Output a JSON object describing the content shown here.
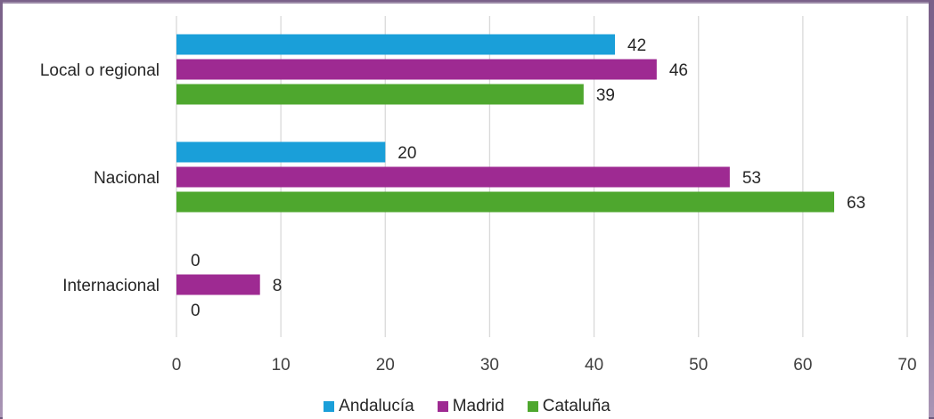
{
  "chart_data": {
    "type": "bar",
    "orientation": "horizontal",
    "categories": [
      "Local o regional",
      "Nacional",
      "Internacional"
    ],
    "series": [
      {
        "name": "Andalucía",
        "color": "#1a9fd9",
        "values": [
          42,
          20,
          0
        ]
      },
      {
        "name": "Madrid",
        "color": "#9e2a92",
        "values": [
          46,
          53,
          8
        ]
      },
      {
        "name": "Cataluña",
        "color": "#4ea72e",
        "values": [
          39,
          63,
          0
        ]
      }
    ],
    "xlim": [
      0,
      70
    ],
    "x_ticks": [
      0,
      10,
      20,
      30,
      40,
      50,
      60,
      70
    ],
    "grid": true,
    "legend_position": "bottom",
    "data_labels": true
  }
}
